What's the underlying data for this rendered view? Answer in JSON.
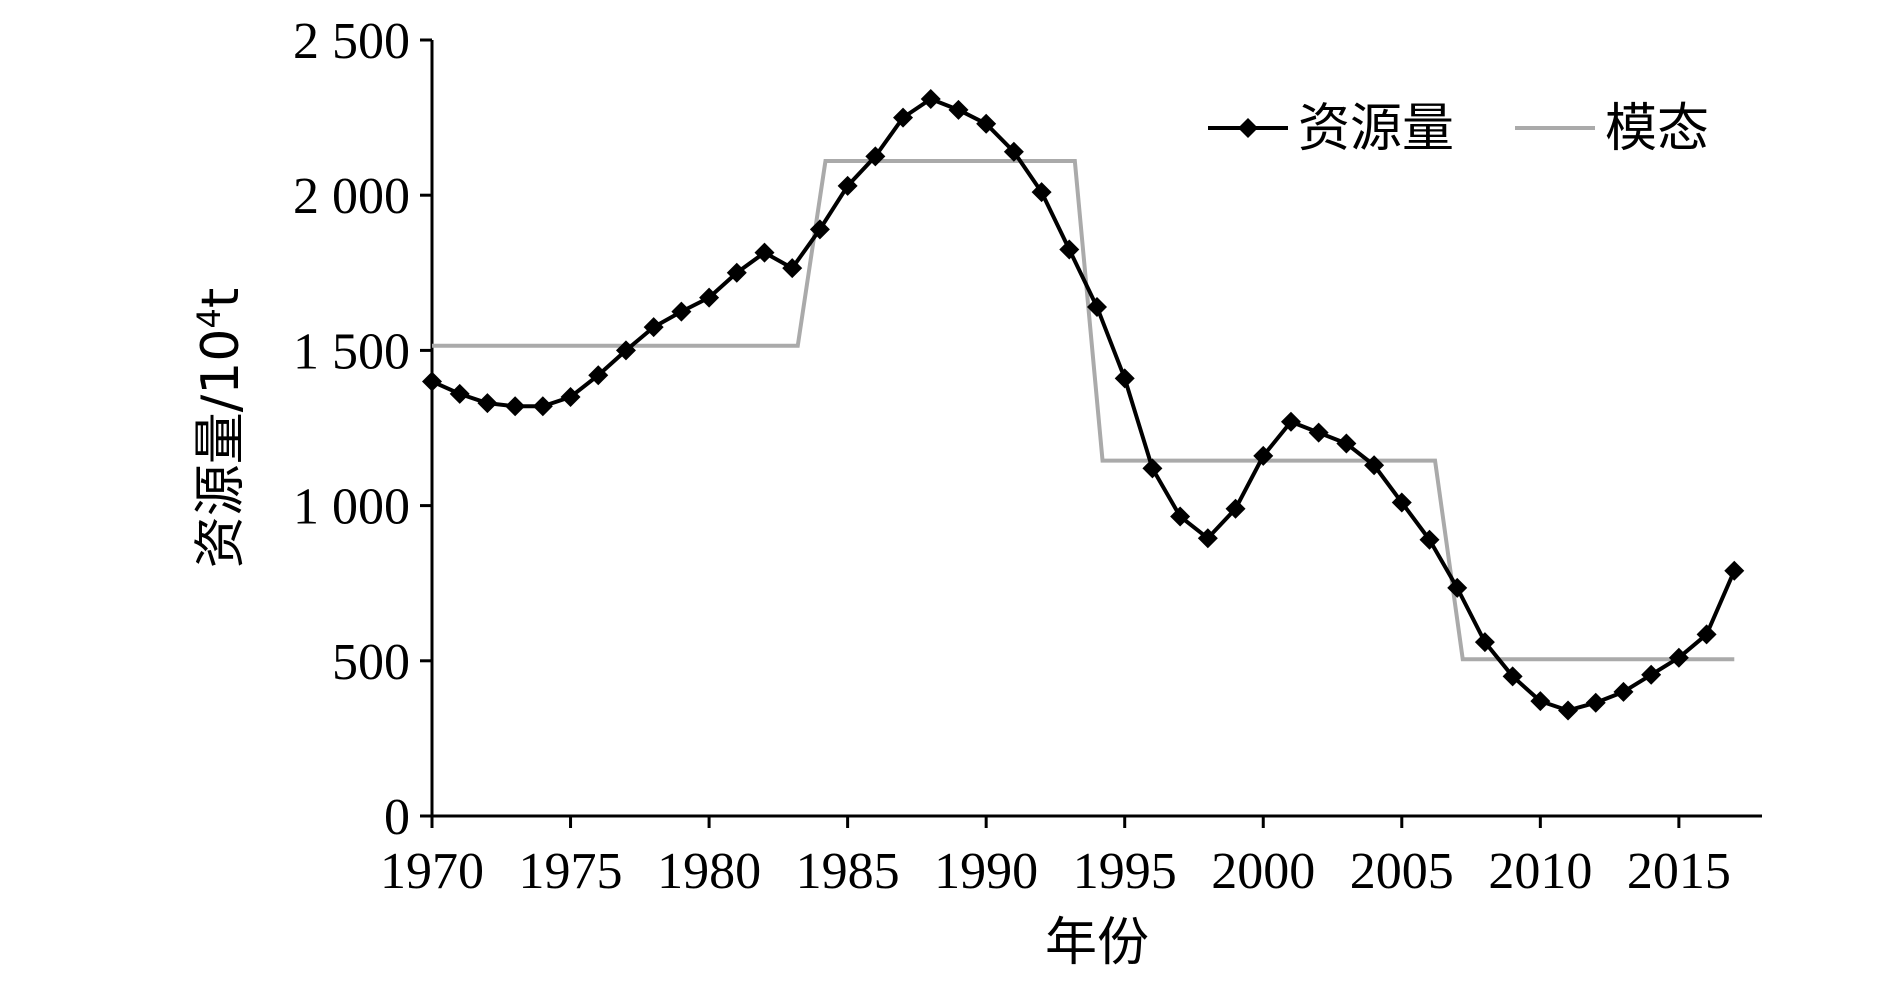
{
  "chart_data": {
    "type": "line",
    "xlabel": "年份",
    "ylabel": {
      "base": "资源量/10",
      "sup": "4",
      "tail": "t"
    },
    "xlim": [
      1970,
      2018
    ],
    "ylim": [
      0,
      2500
    ],
    "xticks": [
      1970,
      1975,
      1980,
      1985,
      1990,
      1995,
      2000,
      2005,
      2010,
      2015
    ],
    "yticks": [
      0,
      500,
      1000,
      1500,
      2000,
      2500
    ],
    "ytick_labels": [
      "0",
      "500",
      "1 000",
      "1 500",
      "2 000",
      "2 500"
    ],
    "legend": "top-right",
    "series": [
      {
        "name": "资源量",
        "color": "#000000",
        "marker": "diamond",
        "x": [
          1970,
          1971,
          1972,
          1973,
          1974,
          1975,
          1976,
          1977,
          1978,
          1979,
          1980,
          1981,
          1982,
          1983,
          1984,
          1985,
          1986,
          1987,
          1988,
          1989,
          1990,
          1991,
          1992,
          1993,
          1994,
          1995,
          1996,
          1997,
          1998,
          1999,
          2000,
          2001,
          2002,
          2003,
          2004,
          2005,
          2006,
          2007,
          2008,
          2009,
          2010,
          2011,
          2012,
          2013,
          2014,
          2015,
          2016,
          2017
        ],
        "y": [
          1400,
          1360,
          1330,
          1320,
          1320,
          1350,
          1420,
          1500,
          1575,
          1625,
          1670,
          1750,
          1815,
          1765,
          1890,
          2030,
          2125,
          2250,
          2310,
          2275,
          2230,
          2140,
          2010,
          1825,
          1640,
          1410,
          1120,
          965,
          895,
          990,
          1160,
          1270,
          1235,
          1200,
          1130,
          1010,
          890,
          735,
          560,
          450,
          370,
          340,
          365,
          400,
          455,
          510,
          585,
          790
        ]
      },
      {
        "name": "模态",
        "color": "#aaaaaa",
        "marker": "none",
        "x": [
          1970,
          1983.2,
          1984.2,
          1993.2,
          1994.2,
          2006.2,
          2007.2,
          2017
        ],
        "y": [
          1515,
          1515,
          2110,
          2110,
          1145,
          1145,
          505,
          505
        ]
      }
    ]
  }
}
